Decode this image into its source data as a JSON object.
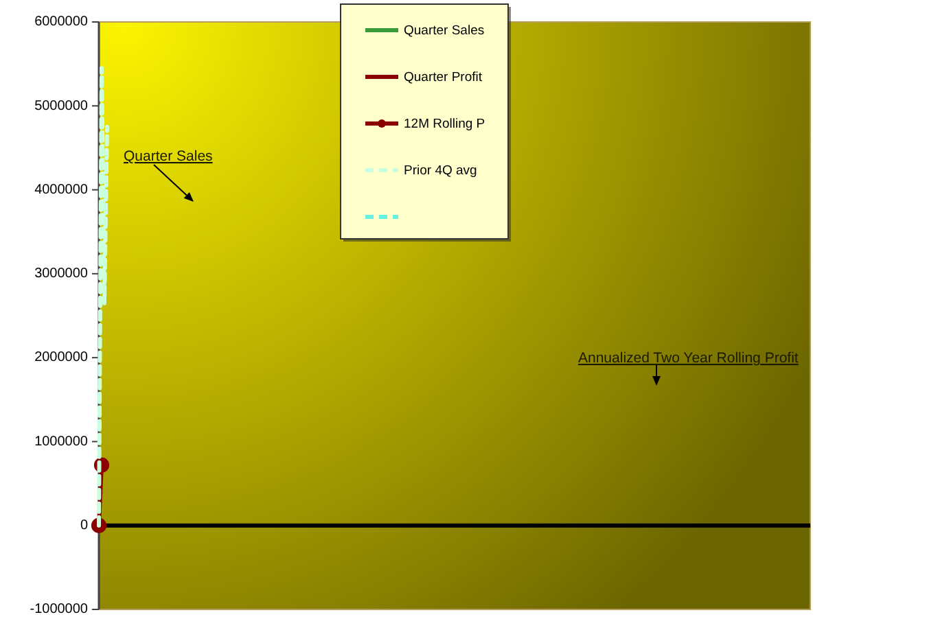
{
  "chart_data": {
    "type": "line",
    "tick_labels": "y",
    "legend": "top",
    "annotations": [
      "Quarter Sales",
      "Annualized Two Year Rolling Profit"
    ],
    "ylim": [
      -1000000,
      6000000
    ],
    "yticks": [
      -1000000,
      0,
      1000000,
      2000000,
      3000000,
      4000000,
      5000000,
      6000000
    ],
    "categories": [
      null,
      null,
      null,
      null,
      null,
      null,
      null,
      null,
      null,
      null,
      null,
      null,
      null,
      null,
      null,
      null,
      null,
      null,
      null,
      null,
      null,
      null,
      null,
      null,
      null,
      null,
      null,
      null,
      null,
      null,
      null,
      null,
      null,
      null,
      null,
      null,
      null,
      null,
      null,
      null,
      null,
      null,
      null,
      null,
      null,
      null,
      null,
      null,
      null,
      null,
      null,
      null,
      null,
      null,
      null,
      null,
      null,
      null,
      null,
      null,
      null,
      null,
      null,
      null,
      null,
      null,
      null,
      null,
      null,
      null,
      null,
      null,
      null,
      null,
      null,
      null,
      null,
      null,
      null,
      null,
      null,
      null,
      null,
      null,
      null,
      null,
      null,
      null,
      null,
      null,
      null,
      null,
      null,
      null,
      null,
      null,
      null,
      null,
      null,
      null,
      null,
      null,
      null,
      null,
      null,
      null,
      null,
      null,
      null,
      null,
      null,
      null,
      null,
      null,
      null,
      null,
      null,
      null,
      null,
      null,
      null,
      null,
      null,
      null,
      null,
      null,
      null,
      null,
      null,
      null,
      null,
      null,
      null,
      null,
      null,
      null,
      null,
      null,
      null,
      null,
      null,
      null,
      null,
      null,
      null,
      null,
      null,
      null,
      null,
      null,
      null,
      null,
      null,
      null,
      null,
      null,
      null,
      null,
      null,
      null,
      null,
      null,
      null,
      null,
      null,
      null,
      null,
      null,
      null,
      null,
      null,
      null,
      null,
      null,
      null,
      null,
      null,
      null,
      null,
      null,
      null,
      null,
      null,
      null,
      null,
      null,
      null,
      null,
      null,
      null,
      null,
      null,
      null,
      null,
      null,
      null,
      null,
      null,
      null,
      null,
      null,
      null,
      null,
      null,
      null,
      null,
      null,
      null,
      null,
      null,
      null,
      null,
      null,
      null,
      null,
      null,
      null,
      null,
      null,
      null,
      null,
      null,
      null,
      null,
      null,
      null,
      null,
      null,
      null,
      null,
      null,
      null,
      null,
      null,
      null,
      null,
      null,
      null,
      null,
      null,
      null,
      null,
      null,
      null,
      null,
      null,
      null,
      null,
      null,
      null,
      null,
      null,
      null,
      null,
      null,
      null,
      null,
      null,
      null,
      null
    ],
    "series": [
      {
        "name": "Quarter Sales",
        "color": "#3a9a3a",
        "line_style": "solid",
        "values": [
          null,
          null,
          null,
          null,
          null,
          null,
          null,
          null,
          null,
          null,
          null,
          null,
          null,
          null,
          null,
          null,
          null,
          null,
          null,
          null,
          null,
          null,
          null,
          null,
          null,
          null,
          null,
          null,
          null,
          null,
          null,
          null,
          null,
          null,
          null,
          null,
          null,
          null,
          null,
          null,
          null,
          null,
          null,
          null,
          null,
          null,
          null,
          null,
          null,
          null,
          null,
          null,
          null,
          null,
          null,
          null,
          null,
          null,
          null,
          null,
          null,
          null,
          null,
          null,
          null,
          null,
          null,
          null,
          null,
          null,
          null,
          null,
          null,
          null,
          null,
          null,
          null,
          null,
          null,
          null,
          null,
          null,
          null,
          null,
          null,
          null,
          null,
          null,
          null,
          null,
          null,
          null,
          null,
          null,
          null,
          null,
          null,
          null,
          null,
          null,
          null,
          null,
          null,
          null,
          null,
          null,
          null,
          null,
          null,
          null,
          null,
          null,
          null,
          null,
          null,
          null,
          null,
          null,
          null,
          null,
          null,
          null,
          null,
          null,
          null,
          null,
          null,
          null,
          null,
          null,
          null,
          null,
          null,
          null,
          null,
          null,
          null,
          null,
          null,
          null,
          null,
          null,
          null,
          null,
          null,
          null,
          null,
          null,
          null,
          null,
          null,
          null,
          null,
          null,
          null,
          null,
          null,
          null,
          null,
          null,
          null,
          null,
          null,
          null,
          null,
          null,
          null,
          null,
          null,
          null,
          null,
          null,
          null,
          null,
          null,
          null,
          null,
          null,
          null,
          null,
          null,
          null,
          null,
          null,
          null,
          null,
          null,
          null,
          null,
          null,
          null,
          null,
          null,
          null,
          null,
          null,
          null,
          null,
          null,
          null,
          null,
          null,
          null,
          null,
          null,
          null,
          null,
          null,
          null,
          null,
          null,
          null,
          null,
          null,
          null,
          null,
          null,
          null,
          null,
          null,
          null,
          null,
          null,
          null,
          null,
          null,
          null,
          null,
          null,
          null,
          null,
          null,
          null,
          null,
          null,
          null,
          null,
          null,
          null,
          null,
          null,
          null,
          null,
          null,
          null,
          null,
          null,
          null,
          null,
          null,
          null,
          null,
          null,
          null,
          null,
          null,
          null,
          null,
          null,
          null
        ]
      },
      {
        "name": "Quarter Profit",
        "color": "#8b0000",
        "line_style": "solid",
        "values": [
          null,
          null,
          null,
          null,
          null,
          null,
          null,
          null,
          null,
          null,
          null,
          null,
          null,
          null,
          null,
          null,
          null,
          null,
          null,
          null,
          null,
          null,
          null,
          null,
          null,
          null,
          null,
          null,
          null,
          null,
          null,
          null,
          null,
          null,
          null,
          null,
          null,
          null,
          null,
          null,
          null,
          null,
          null,
          null,
          null,
          null,
          null,
          null,
          null,
          null,
          null,
          null,
          null,
          null,
          null,
          null,
          null,
          null,
          null,
          null,
          null,
          null,
          null,
          null,
          null,
          null,
          null,
          null,
          null,
          null,
          null,
          null,
          null,
          null,
          null,
          null,
          null,
          null,
          null,
          null,
          null,
          null,
          null,
          null,
          null,
          null,
          null,
          null,
          null,
          null,
          null,
          null,
          null,
          null,
          null,
          null,
          null,
          null,
          null,
          null,
          null,
          null,
          null,
          null,
          null,
          null,
          null,
          null,
          null,
          null,
          null,
          null,
          null,
          null,
          null,
          null,
          null,
          null,
          null,
          null,
          null,
          null,
          null,
          null,
          null,
          null,
          null,
          null,
          null,
          null,
          null,
          null,
          null,
          null,
          null,
          null,
          null,
          null,
          null,
          null,
          null,
          null,
          null,
          null,
          null,
          null,
          null,
          null,
          null,
          null,
          null,
          null,
          null,
          null,
          null,
          null,
          null,
          null,
          null,
          null,
          null,
          null,
          null,
          null,
          null,
          null,
          null,
          null,
          null,
          null,
          null,
          null,
          null,
          null,
          null,
          null,
          null,
          null,
          null,
          null,
          null,
          null,
          null,
          null,
          null,
          null,
          null,
          null,
          null,
          null,
          null,
          null,
          null,
          null,
          null,
          null,
          null,
          null,
          null,
          null,
          null,
          null,
          null,
          null,
          null,
          null,
          null,
          null,
          null,
          null,
          null,
          null,
          null,
          null,
          null,
          null,
          null,
          null,
          null,
          null,
          null,
          null,
          null,
          null,
          null,
          null,
          null,
          null,
          null,
          null,
          null,
          null,
          null,
          null,
          null,
          null,
          null,
          null,
          null,
          null,
          null,
          null,
          null,
          null,
          null,
          null,
          null,
          null,
          null,
          null,
          null,
          null,
          null,
          null,
          null,
          null,
          null,
          null,
          null,
          null
        ]
      },
      {
        "name": "12M Rolling P",
        "color": "#8b0000",
        "line_style": "solid",
        "marker": "circle",
        "values": [
          0,
          720000,
          null,
          null,
          null,
          null,
          null,
          null,
          null,
          null,
          null,
          null,
          null,
          null,
          null,
          null,
          null,
          null,
          null,
          null,
          null,
          null,
          null,
          null,
          null,
          null,
          null,
          null,
          null,
          null,
          null,
          null,
          null,
          null,
          null,
          null,
          null,
          null,
          null,
          null,
          null,
          null,
          null,
          null,
          null,
          null,
          null,
          null,
          null,
          null,
          null,
          null,
          null,
          null,
          null,
          null,
          null,
          null,
          null,
          null,
          null,
          null,
          null,
          null,
          null,
          null,
          null,
          null,
          null,
          null,
          null,
          null,
          null,
          null,
          null,
          null,
          null,
          null,
          null,
          null,
          null,
          null,
          null,
          null,
          null,
          null,
          null,
          null,
          null,
          null,
          null,
          null,
          null,
          null,
          null,
          null,
          null,
          null,
          null,
          null,
          null,
          null,
          null,
          null,
          null,
          null,
          null,
          null,
          null,
          null,
          null,
          null,
          null,
          null,
          null,
          null,
          null,
          null,
          null,
          null,
          null,
          null,
          null,
          null,
          null,
          null,
          null,
          null,
          null,
          null,
          null,
          null,
          null,
          null,
          null,
          null,
          null,
          null,
          null,
          null,
          null,
          null,
          null,
          null,
          null,
          null,
          null,
          null,
          null,
          null,
          null,
          null,
          null,
          null,
          null,
          null,
          null,
          null,
          null,
          null,
          null,
          null,
          null,
          null,
          null,
          null,
          null,
          null,
          null,
          null,
          null,
          null,
          null,
          null,
          null,
          null,
          null,
          null,
          null,
          null,
          null,
          null,
          null,
          null,
          null,
          null,
          null,
          null,
          null,
          null,
          null,
          null,
          null,
          null,
          null,
          null,
          null,
          null,
          null,
          null,
          null,
          null,
          null,
          null,
          null,
          null,
          null,
          null,
          null,
          null,
          null,
          null,
          null,
          null,
          null,
          null,
          null,
          null,
          null,
          null,
          null,
          null,
          null,
          null,
          null,
          null,
          null,
          null,
          null,
          null,
          null,
          null,
          null,
          null,
          null,
          null,
          null,
          null,
          null,
          null,
          null,
          null,
          null,
          null,
          null,
          null,
          null,
          null,
          null,
          null,
          null,
          null,
          null,
          null,
          null,
          null,
          null,
          null,
          null,
          null
        ]
      },
      {
        "name": "Prior 4Q avg",
        "color": "#ccffdd",
        "line_style": "dashed",
        "values": [
          0,
          5450000,
          2650000,
          4750000,
          null,
          null,
          null,
          null,
          null,
          null,
          null,
          null,
          null,
          null,
          null,
          null,
          null,
          null,
          null,
          null,
          null,
          null,
          null,
          null,
          null,
          null,
          null,
          null,
          null,
          null,
          null,
          null,
          null,
          null,
          null,
          null,
          null,
          null,
          null,
          null,
          null,
          null,
          null,
          null,
          null,
          null,
          null,
          null,
          null,
          null,
          null,
          null,
          null,
          null,
          null,
          null,
          null,
          null,
          null,
          null,
          null,
          null,
          null,
          null,
          null,
          null,
          null,
          null,
          null,
          null,
          null,
          null,
          null,
          null,
          null,
          null,
          null,
          null,
          null,
          null,
          null,
          null,
          null,
          null,
          null,
          null,
          null,
          null,
          null,
          null,
          null,
          null,
          null,
          null,
          null,
          null,
          null,
          null,
          null,
          null,
          null,
          null,
          null,
          null,
          null,
          null,
          null,
          null,
          null,
          null,
          null,
          null,
          null,
          null,
          null,
          null,
          null,
          null,
          null,
          null,
          null,
          null,
          null,
          null,
          null,
          null,
          null,
          null,
          null,
          null,
          null,
          null,
          null,
          null,
          null,
          null,
          null,
          null,
          null,
          null,
          null,
          null,
          null,
          null,
          null,
          null,
          null,
          null,
          null,
          null,
          null,
          null,
          null,
          null,
          null,
          null,
          null,
          null,
          null,
          null,
          null,
          null,
          null,
          null,
          null,
          null,
          null,
          null,
          null,
          null,
          null,
          null,
          null,
          null,
          null,
          null,
          null,
          null,
          null,
          null,
          null,
          null,
          null,
          null,
          null,
          null,
          null,
          null,
          null,
          null,
          null,
          null,
          null,
          null,
          null,
          null,
          null,
          null,
          null,
          null,
          null,
          null,
          null,
          null,
          null,
          null,
          null,
          null,
          null,
          null,
          null,
          null,
          null,
          null,
          null,
          null,
          null,
          null,
          null,
          null,
          null,
          null,
          null,
          null,
          null,
          null,
          null,
          null,
          null,
          null,
          null,
          null,
          null,
          null,
          null,
          null,
          null,
          null,
          null,
          null,
          null,
          null,
          null,
          null,
          null,
          null,
          null,
          null,
          null,
          null,
          null,
          null,
          null,
          null,
          null,
          null,
          null,
          null,
          null,
          null
        ]
      },
      {
        "color": "#66f0e0",
        "line_style": "dashed",
        "values": [
          null,
          null,
          null,
          null,
          null,
          null,
          null,
          null,
          null,
          null,
          null,
          null,
          null,
          null,
          null,
          null,
          null,
          null,
          null,
          null,
          null,
          null,
          null,
          null,
          null,
          null,
          null,
          null,
          null,
          null,
          null,
          null,
          null,
          null,
          null,
          null,
          null,
          null,
          null,
          null,
          null,
          null,
          null,
          null,
          null,
          null,
          null,
          null,
          null,
          null,
          null,
          null,
          null,
          null,
          null,
          null,
          null,
          null,
          null,
          null,
          null,
          null,
          null,
          null,
          null,
          null,
          null,
          null,
          null,
          null,
          null,
          null,
          null,
          null,
          null,
          null,
          null,
          null,
          null,
          null,
          null,
          null,
          null,
          null,
          null,
          null,
          null,
          null,
          null,
          null,
          null,
          null,
          null,
          null,
          null,
          null,
          null,
          null,
          null,
          null,
          null,
          null,
          null,
          null,
          null,
          null,
          null,
          null,
          null,
          null,
          null,
          null,
          null,
          null,
          null,
          null,
          null,
          null,
          null,
          null,
          null,
          null,
          null,
          null,
          null,
          null,
          null,
          null,
          null,
          null,
          null,
          null,
          null,
          null,
          null,
          null,
          null,
          null,
          null,
          null,
          null,
          null,
          null,
          null,
          null,
          null,
          null,
          null,
          null,
          null,
          null,
          null,
          null,
          null,
          null,
          null,
          null,
          null,
          null,
          null,
          null,
          null,
          null,
          null,
          null,
          null,
          null,
          null,
          null,
          null,
          null,
          null,
          null,
          null,
          null,
          null,
          null,
          null,
          null,
          null,
          null,
          null,
          null,
          null,
          null,
          null,
          null,
          null,
          null,
          null,
          null,
          null,
          null,
          null,
          null,
          null,
          null,
          null,
          null,
          null,
          null,
          null,
          null,
          null,
          null,
          null,
          null,
          null,
          null,
          null,
          null,
          null,
          null,
          null,
          null,
          null,
          null,
          null,
          null,
          null,
          null,
          null,
          null,
          null,
          null,
          null,
          null,
          null,
          null,
          null,
          null,
          null,
          null,
          null,
          null,
          null,
          null,
          null,
          null,
          null,
          null,
          null,
          null,
          null,
          null,
          null,
          null,
          null,
          null,
          null,
          null,
          null,
          null,
          null,
          null,
          null,
          null,
          null,
          null,
          null
        ]
      }
    ]
  }
}
